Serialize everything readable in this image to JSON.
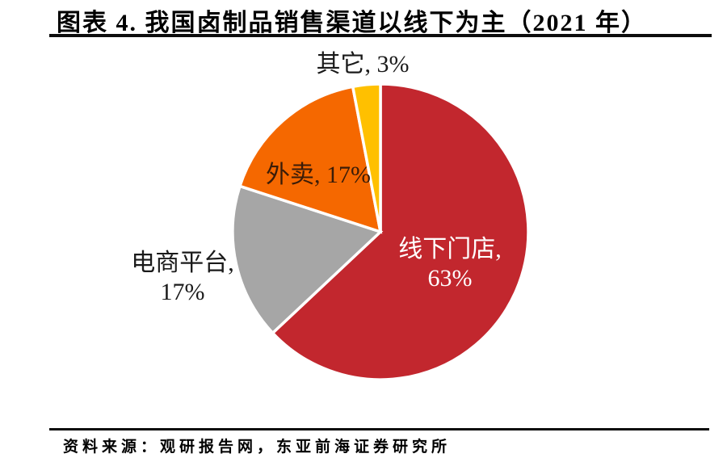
{
  "figure": {
    "title": "图表 4.  我国卤制品销售渠道以线下为主（2021 年）",
    "source": "资料来源：观研报告网，东亚前海证券研究所"
  },
  "chart_data": {
    "type": "pie",
    "title": "我国卤制品销售渠道以线下为主（2021 年）",
    "figure_number": "图表 4.",
    "unit": "%",
    "direction": "clockwise",
    "start_angle_deg": 0,
    "legend": "none",
    "label_format": "{label}, {value}%",
    "slices": [
      {
        "label": "线下门店",
        "value": 63,
        "color": "#C2272E",
        "label_color": "#FFFFFF",
        "label_placement": "inside"
      },
      {
        "label": "电商平台",
        "value": 17,
        "color": "#A6A6A6",
        "label_color": "#1A1A1A",
        "label_placement": "outside"
      },
      {
        "label": "外卖",
        "value": 17,
        "color": "#F56800",
        "label_color": "#3A1C08",
        "label_placement": "inside"
      },
      {
        "label": "其它",
        "value": 3,
        "color": "#FFC000",
        "label_color": "#1A1A1A",
        "label_placement": "outside"
      }
    ]
  }
}
